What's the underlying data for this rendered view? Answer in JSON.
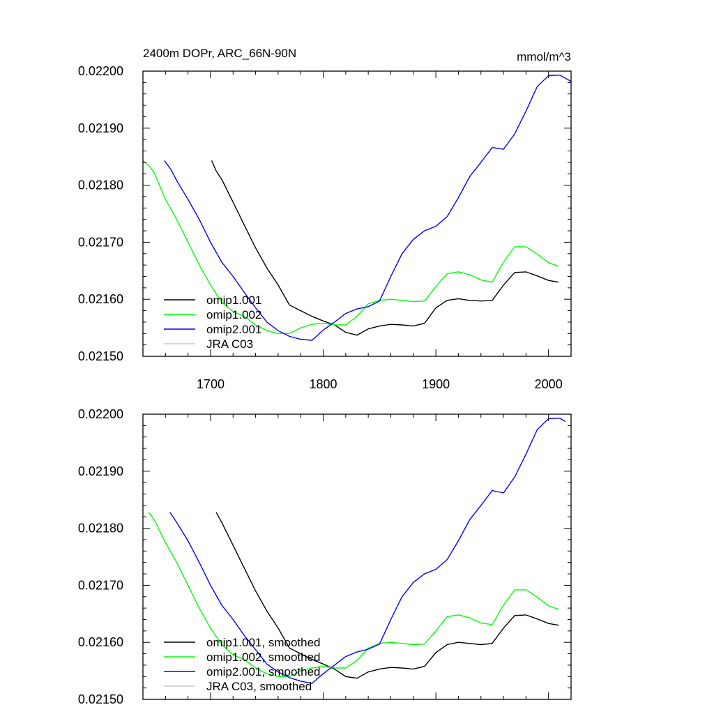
{
  "chart_data": [
    {
      "type": "line",
      "title": "2400m DOPr, ARC_66N-90N",
      "units": "mmol/m^3",
      "xlim": [
        1640,
        2020
      ],
      "ylim": [
        0.0215,
        0.022
      ],
      "x_major_ticks": [
        1700,
        1800,
        1900,
        2000
      ],
      "x_tick_labels": [
        "1700",
        "1800",
        "1900",
        "2000"
      ],
      "y_major_ticks": [
        0.0215,
        0.0216,
        0.0217,
        0.0218,
        0.0219,
        0.022
      ],
      "y_tick_labels": [
        "0.02150",
        "0.02160",
        "0.02170",
        "0.02180",
        "0.02190",
        "0.02200"
      ],
      "legend": [
        "omip1.001",
        "omip1.002",
        "omip2.001",
        "JRA C03"
      ],
      "series": [
        {
          "name": "omip1.001",
          "color": "#000000",
          "x": [
            1701,
            1705,
            1710,
            1720,
            1730,
            1740,
            1750,
            1760,
            1770,
            1780,
            1790,
            1800,
            1810,
            1820,
            1830,
            1840,
            1850,
            1860,
            1870,
            1880,
            1890,
            1900,
            1910,
            1920,
            1930,
            1940,
            1950,
            1960,
            1970,
            1980,
            1990,
            2000,
            2009
          ],
          "values": [
            0.021843,
            0.021825,
            0.02181,
            0.02177,
            0.02173,
            0.02169,
            0.021655,
            0.021625,
            0.02159,
            0.02158,
            0.02157,
            0.021562,
            0.021555,
            0.021542,
            0.021537,
            0.021548,
            0.021553,
            0.021556,
            0.021555,
            0.021553,
            0.021558,
            0.021585,
            0.021598,
            0.021601,
            0.021598,
            0.021597,
            0.021598,
            0.021625,
            0.021647,
            0.021648,
            0.021641,
            0.021633,
            0.02163
          ]
        },
        {
          "name": "omip1.002",
          "color": "#00ff00",
          "x": [
            1640,
            1645,
            1650,
            1660,
            1670,
            1680,
            1690,
            1700,
            1710,
            1720,
            1730,
            1740,
            1750,
            1760,
            1770,
            1780,
            1790,
            1800,
            1810,
            1820,
            1830,
            1840,
            1850,
            1860,
            1870,
            1880,
            1890,
            1900,
            1910,
            1920,
            1930,
            1940,
            1950,
            1960,
            1970,
            1980,
            1990,
            2000,
            2009
          ],
          "values": [
            0.021843,
            0.021835,
            0.021822,
            0.021775,
            0.02174,
            0.0217,
            0.02166,
            0.021625,
            0.021595,
            0.021578,
            0.02157,
            0.021555,
            0.021545,
            0.02154,
            0.02154,
            0.02155,
            0.021556,
            0.021558,
            0.021555,
            0.021555,
            0.02157,
            0.021592,
            0.021598,
            0.0216,
            0.021598,
            0.021596,
            0.021597,
            0.021622,
            0.021645,
            0.021648,
            0.021643,
            0.021634,
            0.02163,
            0.021665,
            0.021692,
            0.021692,
            0.021679,
            0.021664,
            0.021658
          ]
        },
        {
          "name": "omip2.001",
          "color": "#0000ff",
          "x": [
            1659,
            1665,
            1670,
            1680,
            1690,
            1700,
            1710,
            1720,
            1730,
            1740,
            1750,
            1760,
            1770,
            1780,
            1790,
            1800,
            1810,
            1820,
            1830,
            1840,
            1850,
            1860,
            1870,
            1880,
            1890,
            1900,
            1910,
            1920,
            1930,
            1940,
            1950,
            1960,
            1970,
            1980,
            1990,
            2000,
            2010,
            2020
          ],
          "values": [
            0.021843,
            0.021827,
            0.021808,
            0.021775,
            0.02174,
            0.0217,
            0.021665,
            0.02164,
            0.021612,
            0.021585,
            0.02156,
            0.021545,
            0.021535,
            0.02153,
            0.021528,
            0.021546,
            0.02156,
            0.021575,
            0.021583,
            0.021587,
            0.021597,
            0.02164,
            0.02168,
            0.021705,
            0.02172,
            0.021728,
            0.021745,
            0.021778,
            0.021815,
            0.02184,
            0.021866,
            0.021863,
            0.02189,
            0.02193,
            0.021973,
            0.021992,
            0.021993,
            0.021982
          ]
        },
        {
          "name": "JRA C03",
          "color": "#c8c8c8",
          "x": [],
          "values": []
        }
      ]
    },
    {
      "type": "line",
      "title": "",
      "units": "",
      "xlim": [
        1640,
        2020
      ],
      "ylim": [
        0.0215,
        0.022
      ],
      "y_major_ticks": [
        0.0215,
        0.0216,
        0.0217,
        0.0218,
        0.0219,
        0.022
      ],
      "y_tick_labels": [
        "0.02150",
        "0.02160",
        "0.02170",
        "0.02180",
        "0.02190",
        "0.02200"
      ],
      "legend": [
        "omip1.001, smoothed",
        "omip1.002, smoothed",
        "omip2.001, smoothed",
        "JRA C03, smoothed"
      ],
      "series": [
        {
          "name": "omip1.001, smoothed",
          "color": "#000000",
          "x": [
            1705,
            1710,
            1720,
            1730,
            1740,
            1750,
            1760,
            1770,
            1780,
            1790,
            1800,
            1810,
            1820,
            1830,
            1840,
            1850,
            1860,
            1870,
            1880,
            1890,
            1900,
            1910,
            1920,
            1930,
            1940,
            1950,
            1960,
            1970,
            1980,
            1990,
            2000,
            2009
          ],
          "values": [
            0.021828,
            0.02181,
            0.02177,
            0.02173,
            0.02169,
            0.021655,
            0.021625,
            0.02159,
            0.02158,
            0.02157,
            0.021562,
            0.021553,
            0.02154,
            0.021537,
            0.021548,
            0.021553,
            0.021556,
            0.021555,
            0.021553,
            0.021558,
            0.021582,
            0.021596,
            0.0216,
            0.021598,
            0.021596,
            0.021598,
            0.021625,
            0.021647,
            0.021648,
            0.021641,
            0.021633,
            0.02163
          ]
        },
        {
          "name": "omip1.002, smoothed",
          "color": "#00ff00",
          "x": [
            1645,
            1650,
            1660,
            1670,
            1680,
            1690,
            1700,
            1710,
            1720,
            1730,
            1740,
            1750,
            1760,
            1770,
            1780,
            1790,
            1800,
            1810,
            1820,
            1830,
            1840,
            1850,
            1860,
            1870,
            1880,
            1890,
            1900,
            1910,
            1920,
            1930,
            1940,
            1950,
            1960,
            1970,
            1980,
            1990,
            2000,
            2009
          ],
          "values": [
            0.021828,
            0.021815,
            0.021775,
            0.02174,
            0.0217,
            0.02166,
            0.021625,
            0.021596,
            0.021578,
            0.02157,
            0.021555,
            0.021545,
            0.02154,
            0.02154,
            0.02155,
            0.021555,
            0.021558,
            0.021555,
            0.021555,
            0.021568,
            0.02159,
            0.021598,
            0.0216,
            0.021598,
            0.021596,
            0.021597,
            0.02162,
            0.021645,
            0.021648,
            0.021643,
            0.021634,
            0.021631,
            0.021665,
            0.021692,
            0.021692,
            0.021679,
            0.021664,
            0.021658
          ]
        },
        {
          "name": "omip2.001, smoothed",
          "color": "#0000ff",
          "x": [
            1664,
            1670,
            1680,
            1690,
            1700,
            1710,
            1720,
            1730,
            1740,
            1750,
            1760,
            1770,
            1780,
            1790,
            1800,
            1810,
            1820,
            1830,
            1840,
            1850,
            1860,
            1870,
            1880,
            1890,
            1900,
            1910,
            1920,
            1930,
            1940,
            1950,
            1960,
            1970,
            1980,
            1990,
            2000,
            2010,
            2015
          ],
          "values": [
            0.021828,
            0.02181,
            0.021778,
            0.02174,
            0.0217,
            0.021665,
            0.02164,
            0.021612,
            0.021587,
            0.021562,
            0.021548,
            0.021538,
            0.021532,
            0.021528,
            0.021545,
            0.02156,
            0.021575,
            0.021583,
            0.021588,
            0.021597,
            0.02164,
            0.02168,
            0.021705,
            0.02172,
            0.021728,
            0.021745,
            0.021778,
            0.021815,
            0.02184,
            0.021866,
            0.021862,
            0.02189,
            0.02193,
            0.021973,
            0.021992,
            0.021993,
            0.021987
          ]
        },
        {
          "name": "JRA C03, smoothed",
          "color": "#c8c8c8",
          "x": [],
          "values": []
        }
      ]
    }
  ]
}
